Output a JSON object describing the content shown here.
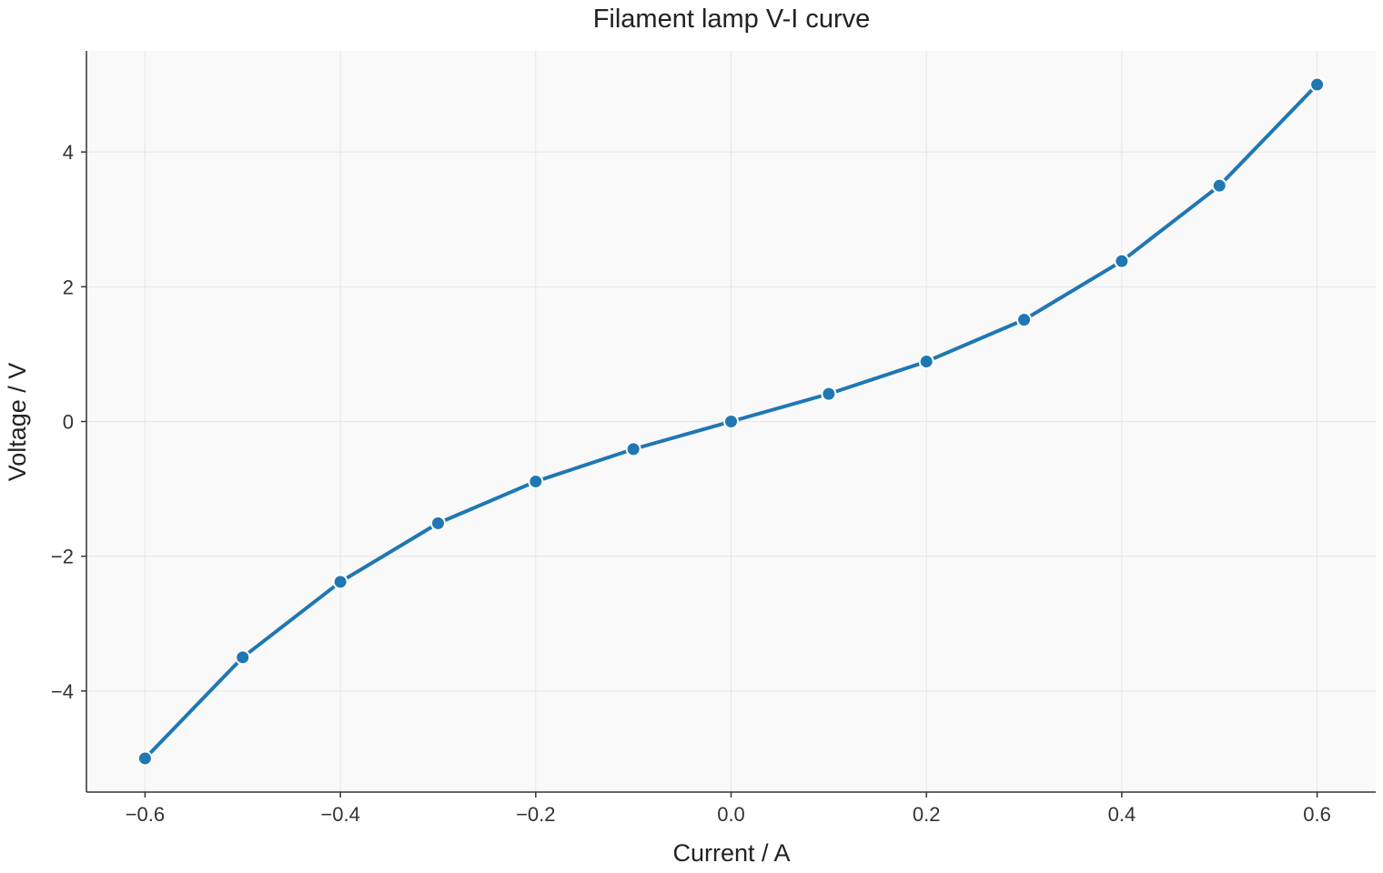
{
  "chart_data": {
    "type": "line",
    "title": "Filament lamp V-I curve",
    "xlabel": "Current / A",
    "ylabel": "Voltage / V",
    "xlim": [
      -0.66,
      0.66
    ],
    "ylim": [
      -5.5,
      5.5
    ],
    "xticks": [
      -0.6,
      -0.4,
      -0.2,
      0.0,
      0.2,
      0.4,
      0.6
    ],
    "xtick_labels": [
      "−0.6",
      "−0.4",
      "−0.2",
      "0.0",
      "0.2",
      "0.4",
      "0.6"
    ],
    "yticks": [
      -4,
      -2,
      0,
      2,
      4
    ],
    "ytick_labels": [
      "−4",
      "−2",
      "0",
      "2",
      "4"
    ],
    "grid": true,
    "background": "#f9f9f9",
    "series": [
      {
        "color": "#1f77b4",
        "x": [
          -0.6,
          -0.5,
          -0.4,
          -0.3,
          -0.2,
          -0.1,
          0.0,
          0.1,
          0.2,
          0.3,
          0.4,
          0.5,
          0.6
        ],
        "y": [
          -5.0,
          -3.5,
          -2.38,
          -1.51,
          -0.89,
          -0.41,
          0.0,
          0.41,
          0.89,
          1.51,
          2.38,
          3.5,
          5.0
        ]
      }
    ]
  }
}
